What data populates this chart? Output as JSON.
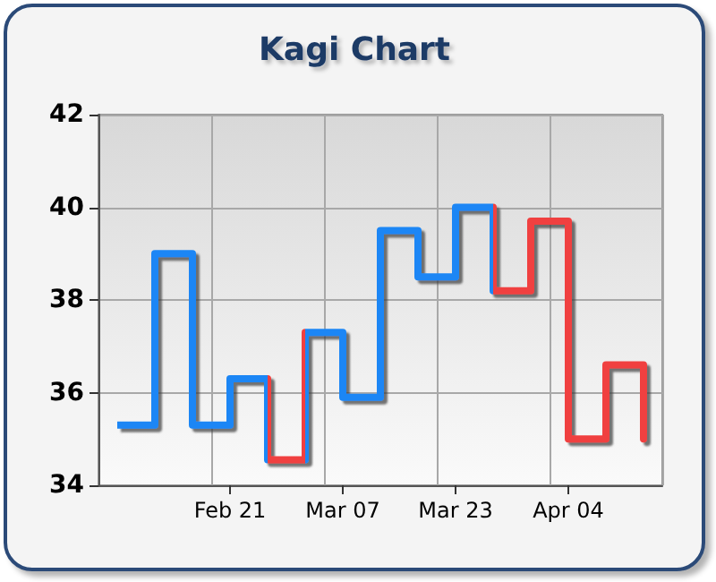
{
  "chart_data": {
    "type": "step",
    "title": "Kagi Chart",
    "categories": [
      null,
      null,
      null,
      "Feb 21",
      null,
      null,
      "Mar 07",
      null,
      null,
      "Mar 23",
      null,
      null,
      "Apr 04",
      null,
      null
    ],
    "values": [
      35.3,
      39,
      35.3,
      36.3,
      34.55,
      37.3,
      35.9,
      39.5,
      38.5,
      40,
      38.2,
      39.7,
      35,
      36.6,
      35
    ],
    "colors": [
      "#1a86f5",
      "#1a86f5",
      "#1a86f5",
      "#1a86f5",
      "#f04040",
      "#1a86f5",
      "#1a86f5",
      "#1a86f5",
      "#1a86f5",
      "#1a86f5",
      "#f04040",
      "#f04040",
      "#f04040",
      "#f04040",
      "#f04040"
    ],
    "ylim": [
      34,
      42
    ],
    "yticks": [
      34,
      36,
      38,
      40,
      42
    ],
    "grid": true,
    "marker": "none"
  }
}
